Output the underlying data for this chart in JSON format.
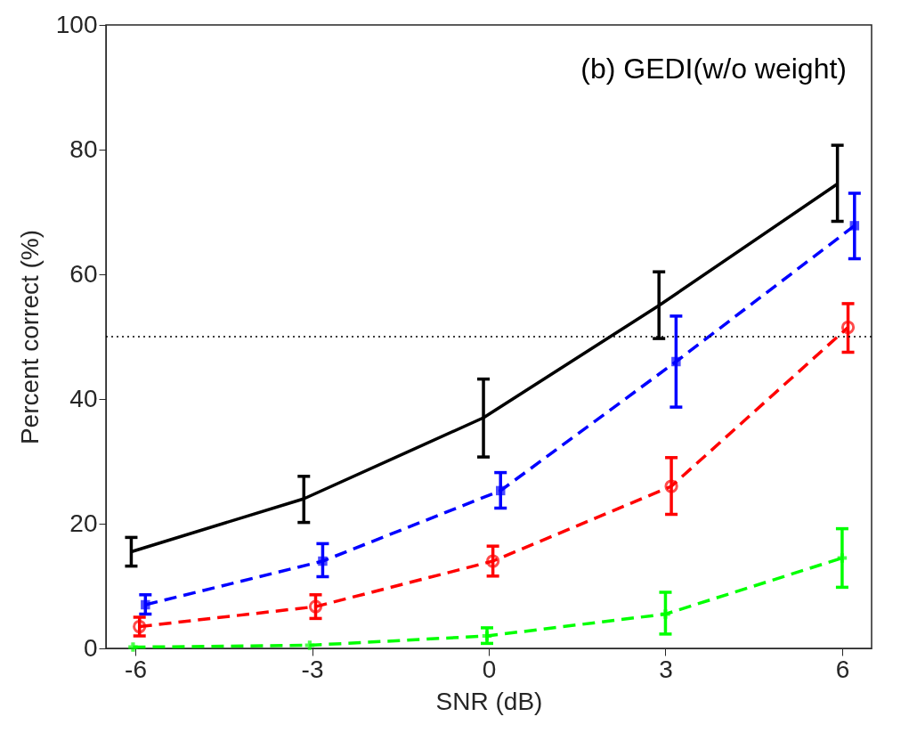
{
  "chart_data": {
    "type": "line",
    "xlabel": "SNR (dB)",
    "ylabel": "Percent correct (%)",
    "annotations": [
      "(b) GEDI(w/o weight)"
    ],
    "xlim": [
      -6.5,
      6.5
    ],
    "xticks": [
      -6,
      -3,
      0,
      3,
      6
    ],
    "ylim": [
      0,
      100
    ],
    "yticks": [
      0,
      20,
      40,
      60,
      80,
      100
    ],
    "grid": false,
    "ref_lines": [
      {
        "axis": "y",
        "value": 50,
        "color": "#000000",
        "line_style": "dotted"
      }
    ],
    "series": [
      {
        "color": "#000000",
        "marker": "none",
        "line_style": "solid",
        "x": [
          -6.07,
          -3.14,
          -0.09,
          2.89,
          5.92
        ],
        "values": [
          15.5,
          24,
          37,
          55,
          74.5
        ],
        "errors": [
          [
            13.2,
            17.8
          ],
          [
            20.2,
            27.6
          ],
          [
            30.7,
            43.2
          ],
          [
            49.7,
            60.4
          ],
          [
            68.5,
            80.7
          ]
        ]
      },
      {
        "color": "#0000ff",
        "marker": "square",
        "line_style": "dashed",
        "x": [
          -5.83,
          -2.82,
          0.2,
          3.18,
          6.21
        ],
        "values": [
          7,
          14,
          25.3,
          46,
          67.8
        ],
        "errors": [
          [
            5.5,
            8.6
          ],
          [
            11.5,
            16.8
          ],
          [
            22.5,
            28.2
          ],
          [
            38.7,
            53.3
          ],
          [
            62.5,
            73
          ]
        ]
      },
      {
        "color": "#ff0000",
        "marker": "circle",
        "line_style": "dashed",
        "x": [
          -5.93,
          -2.94,
          0.07,
          3.1,
          6.1
        ],
        "values": [
          3.5,
          6.7,
          14,
          26,
          51.5
        ],
        "errors": [
          [
            2,
            5
          ],
          [
            4.8,
            8.6
          ],
          [
            11.6,
            16.4
          ],
          [
            21.5,
            30.6
          ],
          [
            47.5,
            55.3
          ]
        ]
      },
      {
        "color": "#00ff00",
        "marker": "cross",
        "line_style": "dashed",
        "x": [
          -6.04,
          -3.04,
          -0.03,
          3.0,
          6.0
        ],
        "values": [
          0.2,
          0.5,
          2,
          5.5,
          14.5
        ],
        "errors": [
          null,
          null,
          [
            0.8,
            3.3
          ],
          [
            2.3,
            9
          ],
          [
            9.8,
            19.2
          ]
        ]
      }
    ]
  }
}
